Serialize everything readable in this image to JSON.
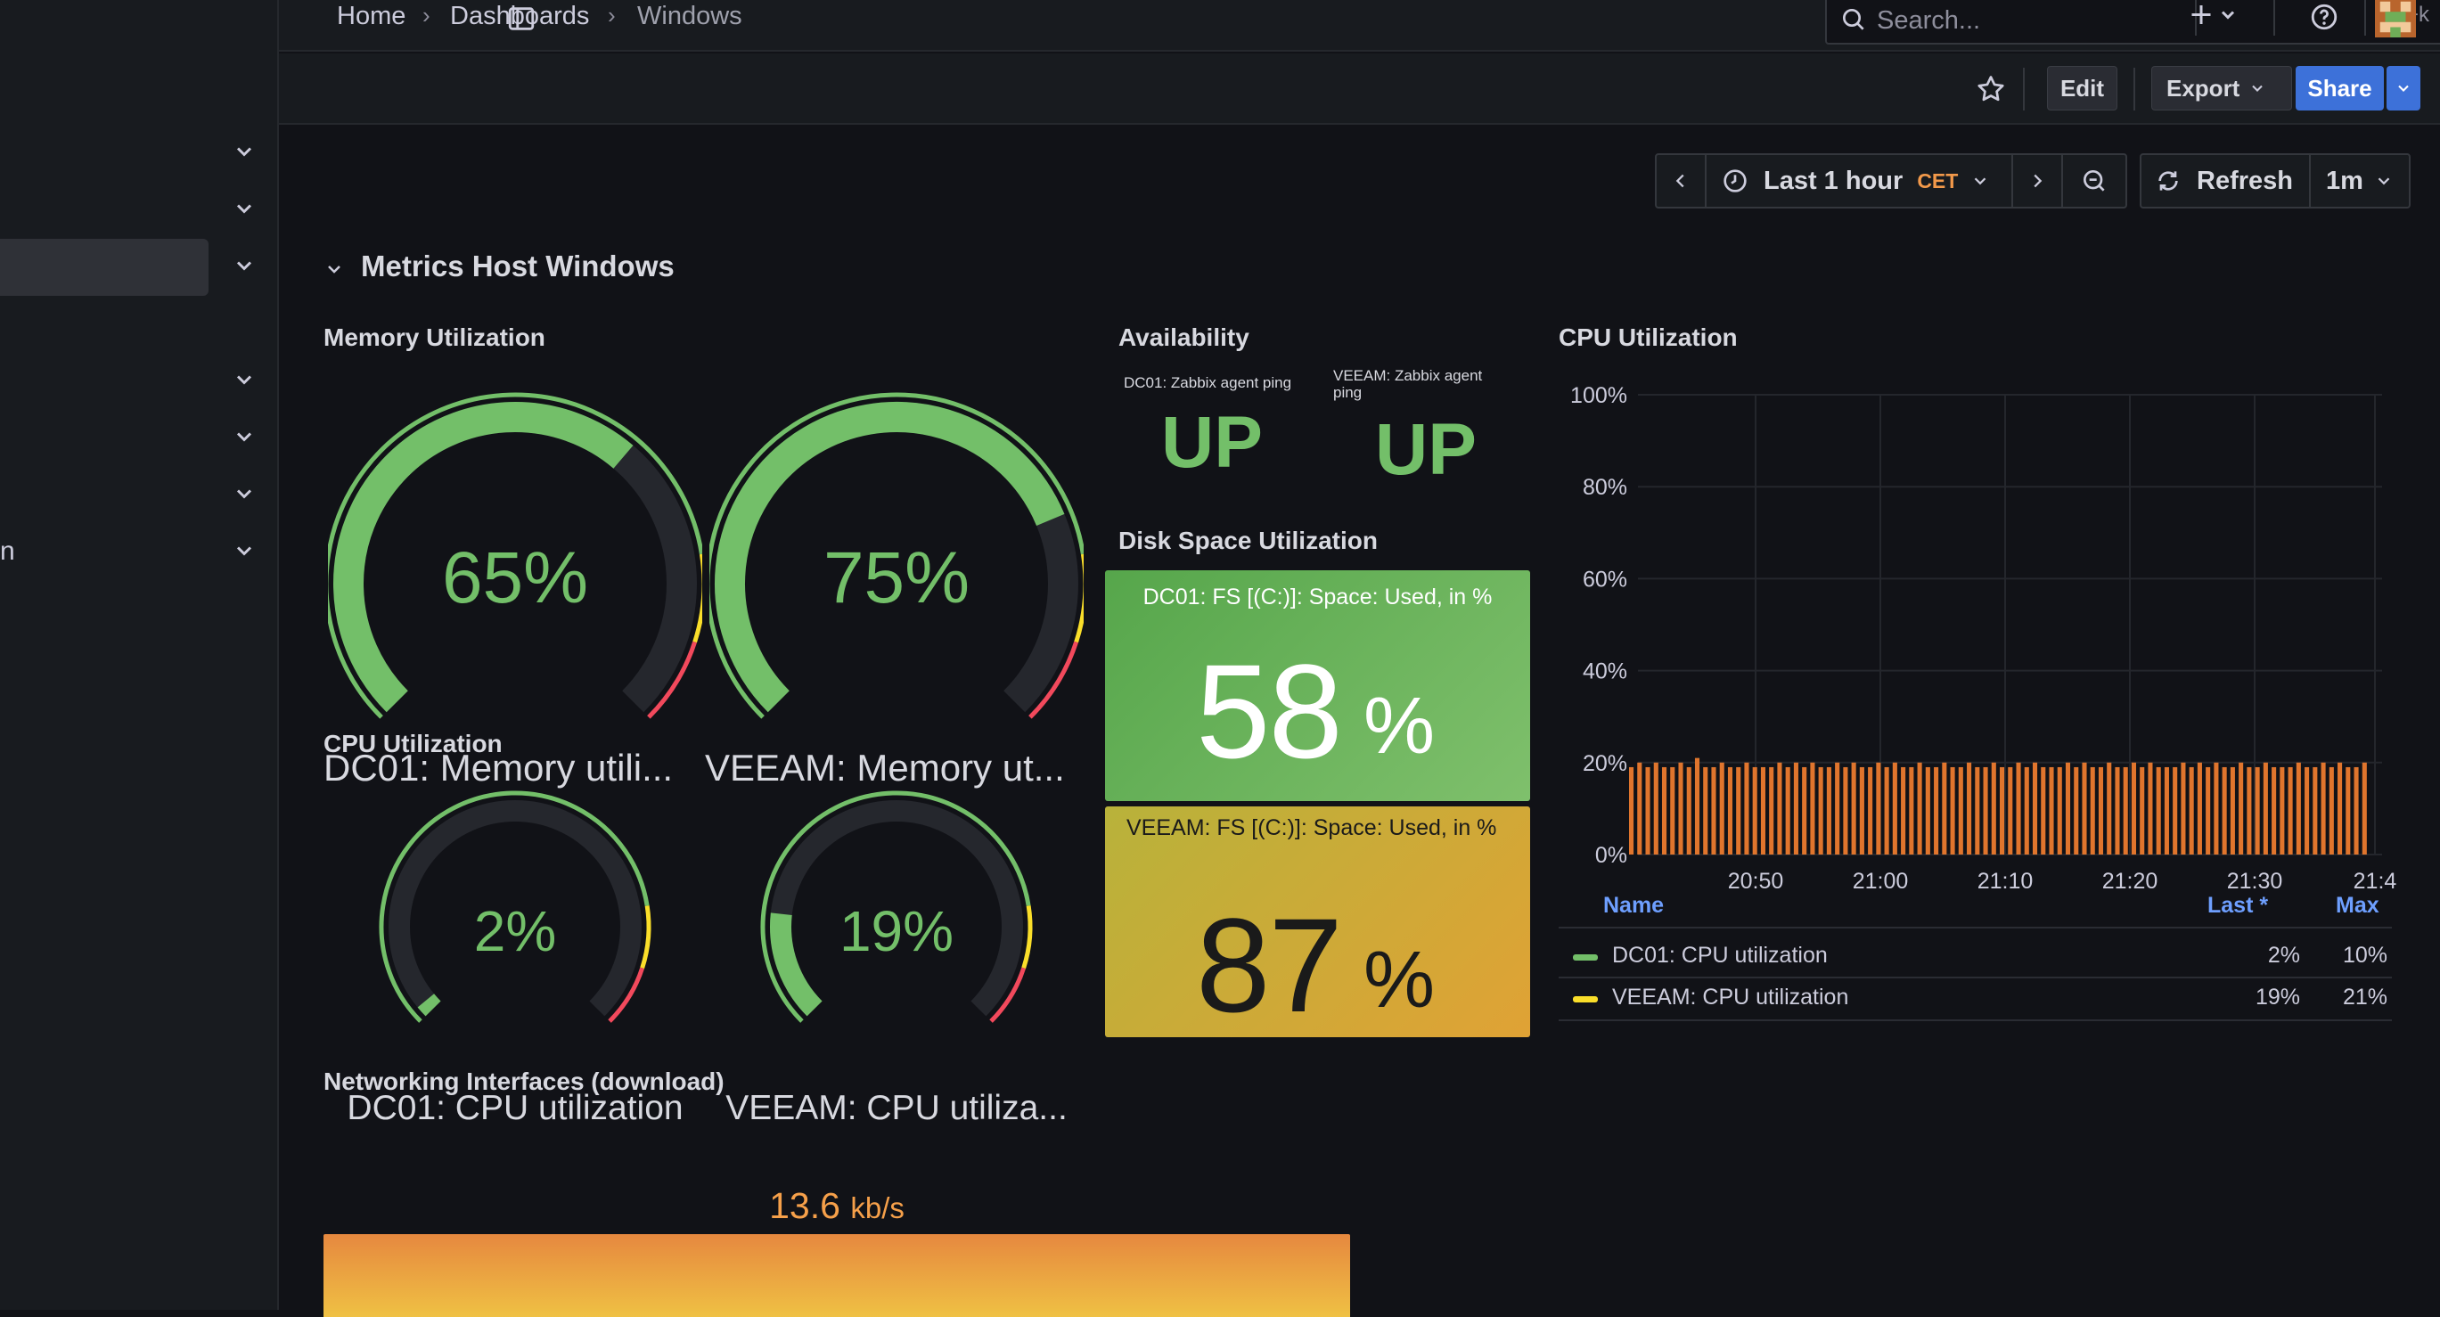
{
  "breadcrumb": {
    "home": "Home",
    "dashboards": "Dashboards",
    "current": "Windows"
  },
  "search": {
    "placeholder": "Search...",
    "shortcut": "⌘+k"
  },
  "sidebar": {
    "partial_text": "n"
  },
  "toolbar": {
    "edit": "Edit",
    "export": "Export",
    "share": "Share"
  },
  "timepicker": {
    "range": "Last 1 hour",
    "timezone": "CET",
    "refresh": "Refresh",
    "interval": "1m"
  },
  "row": {
    "title": "Metrics Host Windows"
  },
  "memory": {
    "title": "Memory Utilization",
    "gauges": [
      {
        "value": "65%",
        "label": "DC01: Memory utili...",
        "fraction": 0.65
      },
      {
        "value": "75%",
        "label": "VEEAM: Memory ut...",
        "fraction": 0.75
      }
    ]
  },
  "cpu_gauges": {
    "title": "CPU Utilization",
    "gauges": [
      {
        "value": "2%",
        "label": "DC01: CPU utilization",
        "fraction": 0.02
      },
      {
        "value": "19%",
        "label": "VEEAM: CPU utiliza...",
        "fraction": 0.19
      }
    ]
  },
  "availability": {
    "title": "Availability",
    "items": [
      {
        "label": "DC01: Zabbix agent ping",
        "value": "UP"
      },
      {
        "label": "VEEAM: Zabbix agent ping",
        "value": "UP"
      }
    ]
  },
  "disk": {
    "title": "Disk Space Utilization",
    "items": [
      {
        "label": "DC01: FS [(C:)]: Space: Used, in %",
        "value": "58",
        "unit": "%"
      },
      {
        "label": "VEEAM: FS [(C:)]: Space: Used, in %",
        "value": "87",
        "unit": "%"
      }
    ]
  },
  "cpu_chart": {
    "title": "CPU Utilization",
    "legend": {
      "headers": {
        "name": "Name",
        "last": "Last *",
        "max": "Max"
      },
      "rows": [
        {
          "name": "DC01: CPU utilization",
          "last": "2%",
          "max": "10%",
          "color": "#73bf69"
        },
        {
          "name": "VEEAM: CPU utilization",
          "last": "19%",
          "max": "21%",
          "color": "#fade2a"
        }
      ]
    }
  },
  "networking": {
    "title": "Networking Interfaces (download)",
    "value": "13.6",
    "unit": "kb/s"
  },
  "colors": {
    "green": "#73bf69",
    "orange_bars": "#e0752d",
    "primary": "#3d71d9"
  },
  "chart_data": {
    "type": "bar",
    "title": "CPU Utilization",
    "ylim": [
      0,
      100
    ],
    "y_ticks": [
      "100%",
      "80%",
      "60%",
      "40%",
      "20%",
      "0%"
    ],
    "x_ticks": [
      "20:50",
      "21:00",
      "21:10",
      "21:20",
      "21:30",
      "21:4"
    ],
    "grid": true,
    "legend_position": "bottom",
    "series": [
      {
        "name": "VEEAM: CPU utilization",
        "color": "#e0752d",
        "values": [
          19,
          20,
          19,
          20,
          19,
          19,
          20,
          19,
          21,
          19,
          19,
          20,
          19,
          19,
          20,
          19,
          19,
          19,
          20,
          19,
          20,
          19,
          20,
          19,
          19,
          20,
          19,
          20,
          19,
          19,
          20,
          19,
          20,
          19,
          19,
          20,
          19,
          19,
          20,
          19,
          19,
          20,
          19,
          19,
          20,
          19,
          19,
          20,
          19,
          20,
          19,
          19,
          19,
          20,
          19,
          20,
          19,
          19,
          20,
          19,
          19,
          20,
          19,
          20,
          19,
          19,
          19,
          20,
          19,
          20,
          19,
          20,
          19,
          19,
          20,
          19,
          19,
          20,
          19,
          19,
          19,
          20,
          19,
          19,
          20,
          19,
          20,
          19,
          19,
          20
        ]
      }
    ]
  }
}
